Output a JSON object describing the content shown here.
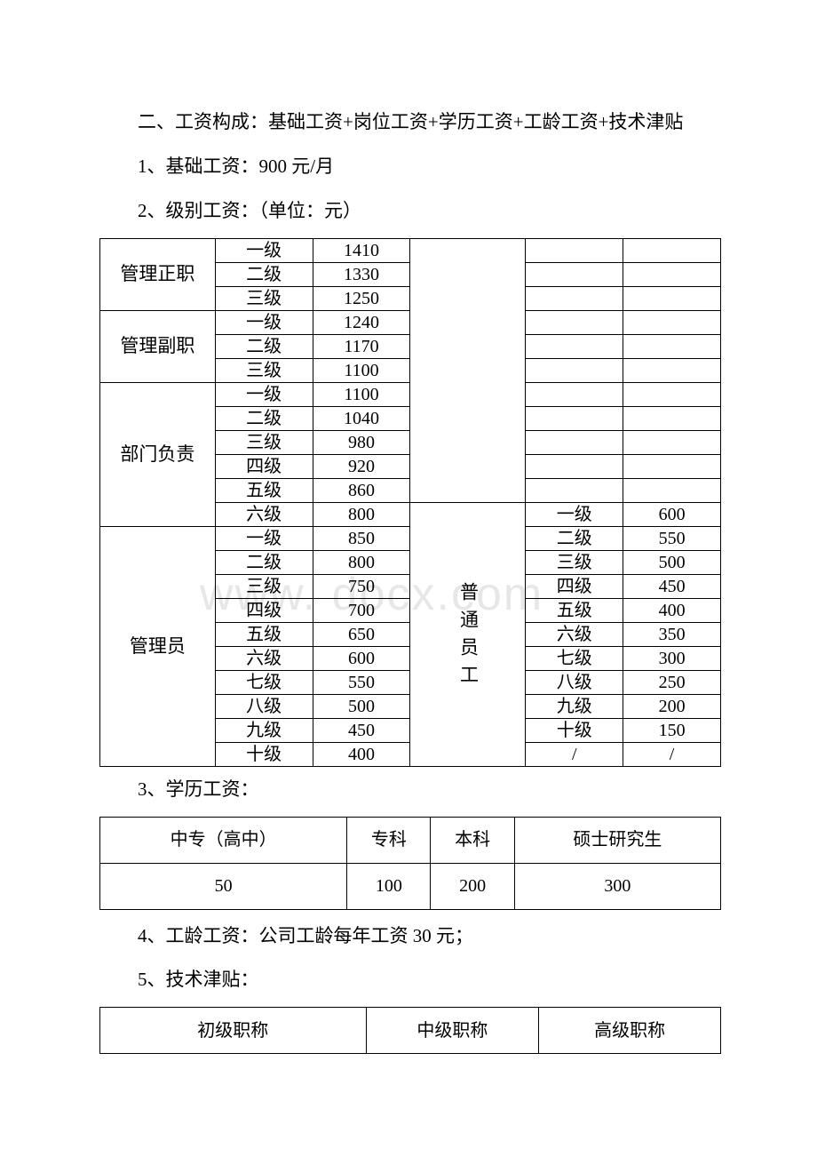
{
  "watermark": "www.      docx.com",
  "section2": {
    "heading": "二、工资构成：基础工资+岗位工资+学历工资+工龄工资+技术津贴",
    "item1": "1、基础工资：900 元/月",
    "item2": "2、级别工资：（单位：元）",
    "item3": "3、学历工资：",
    "item4": "4、工龄工资：公司工龄每年工资 30 元；",
    "item5": "5、技术津贴："
  },
  "table1": {
    "groups": [
      {
        "label": "管理正职",
        "rows": [
          {
            "level": "一级",
            "value": "1410",
            "rlevel": "",
            "rvalue": ""
          },
          {
            "level": "二级",
            "value": "1330",
            "rlevel": "",
            "rvalue": ""
          },
          {
            "level": "三级",
            "value": "1250",
            "rlevel": "",
            "rvalue": ""
          }
        ]
      },
      {
        "label": "管理副职",
        "rows": [
          {
            "level": "一级",
            "value": "1240",
            "rlevel": "",
            "rvalue": ""
          },
          {
            "level": "二级",
            "value": "1170",
            "rlevel": "",
            "rvalue": ""
          },
          {
            "level": "三级",
            "value": "1100",
            "rlevel": "",
            "rvalue": ""
          }
        ]
      },
      {
        "label": "部门负责",
        "rows": [
          {
            "level": "一级",
            "value": "1100",
            "rlevel": "",
            "rvalue": ""
          },
          {
            "level": "二级",
            "value": "1040",
            "rlevel": "",
            "rvalue": ""
          },
          {
            "level": "三级",
            "value": "980",
            "rlevel": "",
            "rvalue": ""
          },
          {
            "level": "四级",
            "value": "920",
            "rlevel": "",
            "rvalue": ""
          },
          {
            "level": "五级",
            "value": "860",
            "rlevel": "",
            "rvalue": ""
          },
          {
            "level": "六级",
            "value": "800",
            "rlevel": "一级",
            "rvalue": "600"
          }
        ]
      },
      {
        "label": "管理员",
        "rows": [
          {
            "level": "一级",
            "value": "850",
            "rlevel": "二级",
            "rvalue": "550"
          },
          {
            "level": "二级",
            "value": "800",
            "rlevel": "三级",
            "rvalue": "500"
          },
          {
            "level": "三级",
            "value": "750",
            "rlevel": "四级",
            "rvalue": "450"
          },
          {
            "level": "四级",
            "value": "700",
            "rlevel": "五级",
            "rvalue": "400"
          },
          {
            "level": "五级",
            "value": "650",
            "rlevel": "六级",
            "rvalue": "350"
          },
          {
            "level": "六级",
            "value": "600",
            "rlevel": "七级",
            "rvalue": "300"
          },
          {
            "level": "七级",
            "value": "550",
            "rlevel": "八级",
            "rvalue": "250"
          },
          {
            "level": "八级",
            "value": "500",
            "rlevel": "九级",
            "rvalue": "200"
          },
          {
            "level": "九级",
            "value": "450",
            "rlevel": "十级",
            "rvalue": "150"
          },
          {
            "level": "十级",
            "value": "400",
            "rlevel": "/",
            "rvalue": "/"
          }
        ]
      }
    ],
    "right_label": "普通员工",
    "col_widths": [
      "130",
      "105",
      "105",
      "130",
      "105",
      "105"
    ]
  },
  "table2": {
    "headers": [
      "中专（高中）",
      "专科",
      "本科",
      "硕士研究生"
    ],
    "values": [
      "50",
      "100",
      "200",
      "300"
    ]
  },
  "table3": {
    "headers": [
      "初级职称",
      "中级职称",
      "高级职称"
    ],
    "col_widths": [
      "290",
      "190",
      "200"
    ]
  }
}
